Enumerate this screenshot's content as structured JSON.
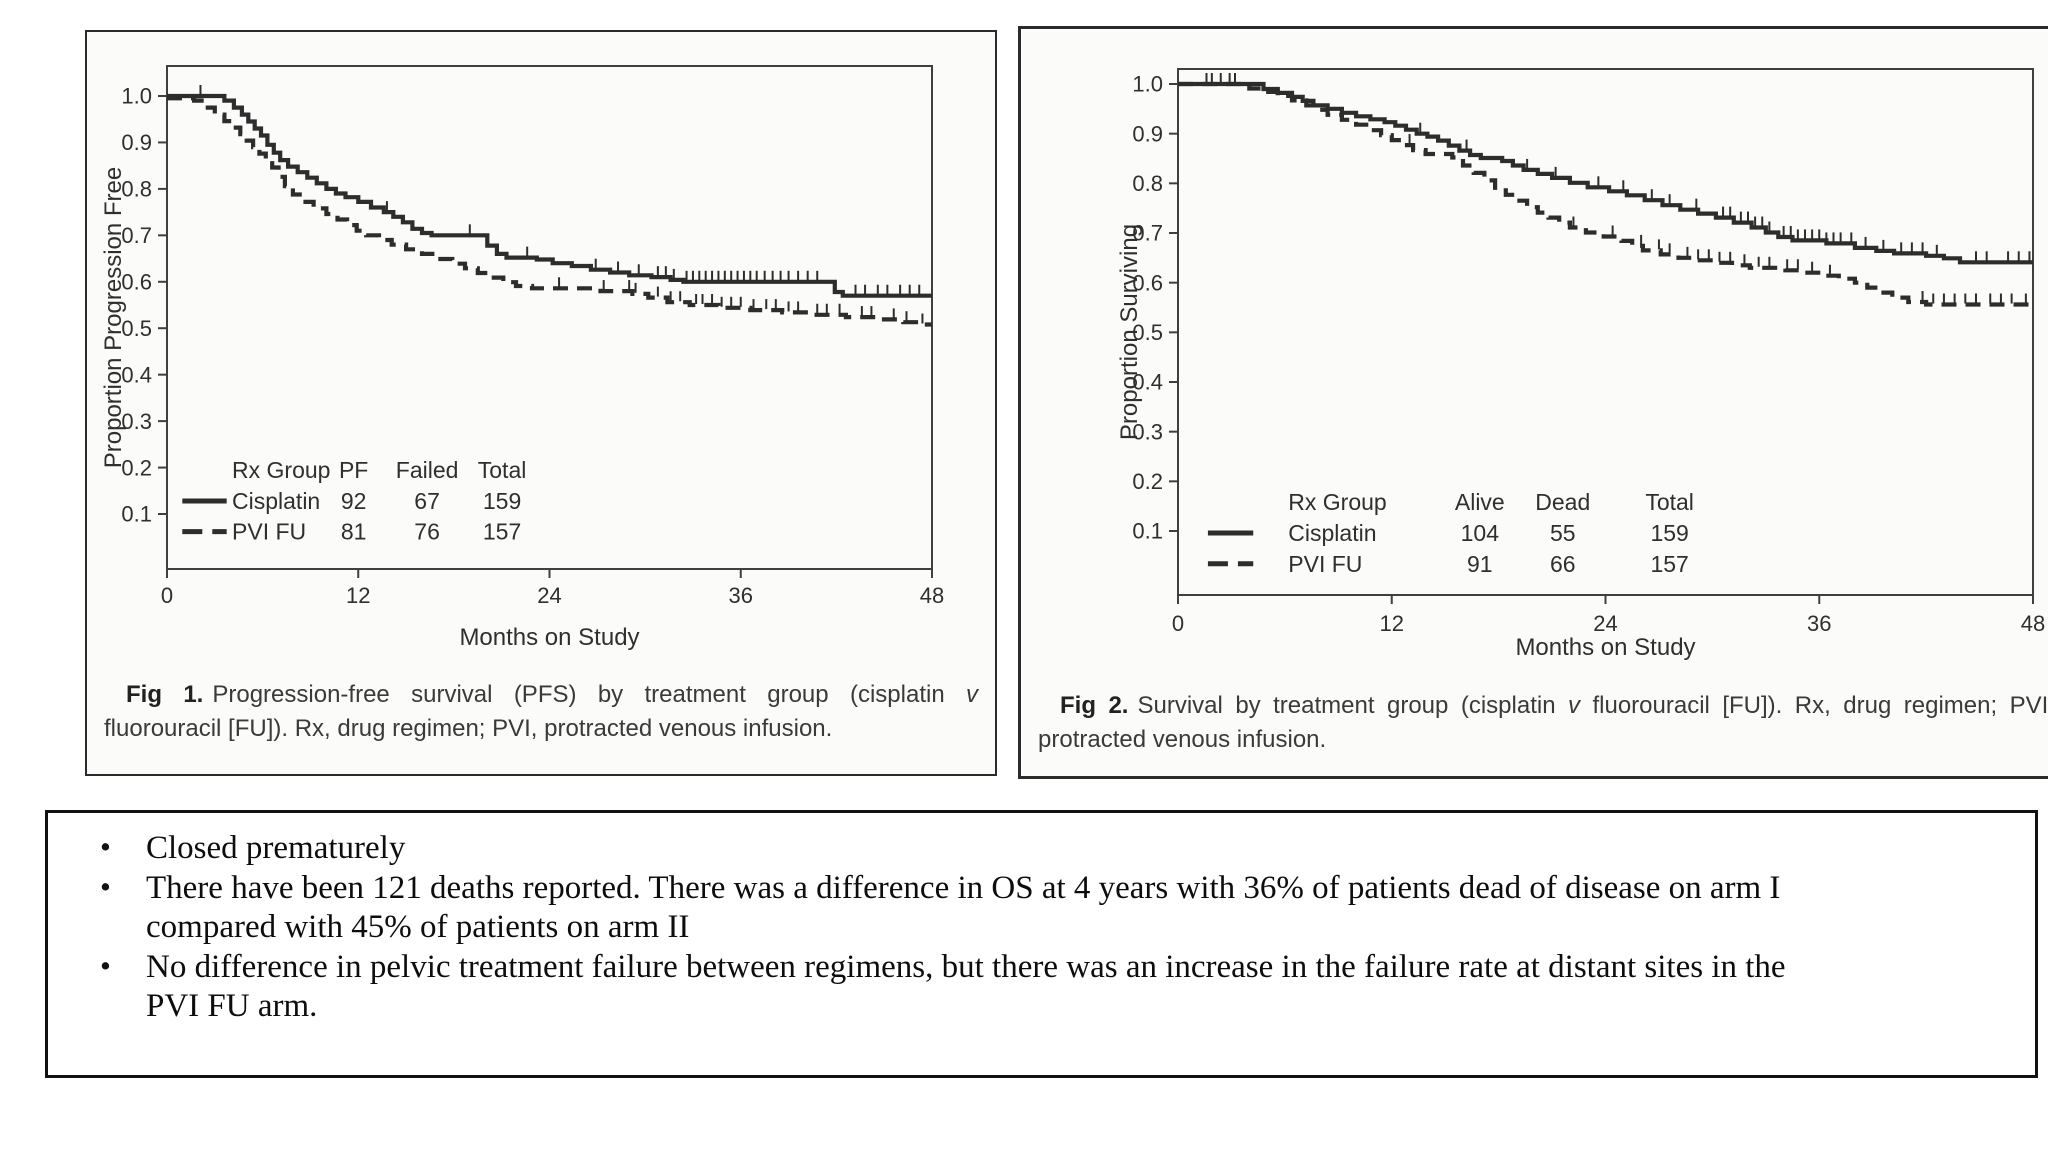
{
  "page": {
    "background": "#ffffff"
  },
  "colors": {
    "curve": "#2d2d2d",
    "axis": "#3f3f3f",
    "tick_text": "#2f2f2f",
    "caption_text": "#3a3a3a",
    "box_border": "#1c1c1c"
  },
  "figures": [
    {
      "caption": {
        "label": "Fig 1.",
        "segments": [
          [
            "Progression-free survival (PFS) by treatment group (cisplatin ",
            "n"
          ],
          [
            "v",
            "i"
          ],
          [
            " fluorouracil [FU]). Rx, drug regimen; PVI, protracted venous infusion.",
            "n"
          ]
        ]
      }
    },
    {
      "caption": {
        "label": "Fig 2.",
        "segments": [
          [
            "Survival by treatment group (cisplatin ",
            "n"
          ],
          [
            "v",
            "i"
          ],
          [
            " fluorouracil [FU]). Rx, drug regimen; PVI, protracted venous infusion.",
            "n"
          ]
        ]
      }
    }
  ],
  "chart_data": [
    {
      "type": "line",
      "subtype": "kaplan-meier-step",
      "title": "",
      "xlabel": "Months on Study",
      "ylabel": "Proportion Progression Free",
      "xlim": [
        0,
        48
      ],
      "xticks": [
        0,
        12,
        24,
        36,
        48
      ],
      "ylim": [
        0,
        1.0
      ],
      "yticks": [
        "1.0",
        "0.9",
        "0.8",
        "0.7",
        "0.6",
        "0.5",
        "0.4",
        "0.3",
        "0.2",
        "0.1"
      ],
      "grid": false,
      "legend_position": "inside-bottom-left",
      "legend_table": {
        "headers": [
          "Rx Group",
          "PF",
          "Failed",
          "Total"
        ],
        "rows": [
          [
            "Cisplatin",
            "92",
            "67",
            "159"
          ],
          [
            "PVI FU",
            "81",
            "76",
            "157"
          ]
        ]
      },
      "series": [
        {
          "name": "Cisplatin",
          "style": "solid",
          "points": [
            [
              0,
              1.0
            ],
            [
              3,
              1.0
            ],
            [
              3.6,
              0.99
            ],
            [
              4.2,
              0.975
            ],
            [
              4.7,
              0.96
            ],
            [
              5.1,
              0.945
            ],
            [
              5.5,
              0.93
            ],
            [
              5.9,
              0.915
            ],
            [
              6.3,
              0.895
            ],
            [
              6.7,
              0.878
            ],
            [
              7.1,
              0.862
            ],
            [
              7.6,
              0.848
            ],
            [
              8.2,
              0.836
            ],
            [
              8.8,
              0.824
            ],
            [
              9.4,
              0.812
            ],
            [
              10,
              0.8
            ],
            [
              10.6,
              0.79
            ],
            [
              11.2,
              0.782
            ],
            [
              12,
              0.772
            ],
            [
              12.8,
              0.76
            ],
            [
              13.6,
              0.75
            ],
            [
              14.2,
              0.74
            ],
            [
              14.8,
              0.728
            ],
            [
              15.4,
              0.714
            ],
            [
              16,
              0.705
            ],
            [
              16.6,
              0.7
            ],
            [
              19.6,
              0.7
            ],
            [
              20.1,
              0.678
            ],
            [
              20.7,
              0.66
            ],
            [
              21.3,
              0.652
            ],
            [
              23.2,
              0.648
            ],
            [
              24.2,
              0.64
            ],
            [
              25.4,
              0.634
            ],
            [
              26.6,
              0.626
            ],
            [
              27.8,
              0.62
            ],
            [
              29,
              0.614
            ],
            [
              30.4,
              0.61
            ],
            [
              31.6,
              0.604
            ],
            [
              32.4,
              0.6
            ],
            [
              41.2,
              0.6
            ],
            [
              41.9,
              0.578
            ],
            [
              42.4,
              0.57
            ],
            [
              48,
              0.57
            ]
          ],
          "censor_x": [
            2.1,
            13.8,
            19,
            22.6,
            26.9,
            28.3,
            29.6,
            30.8,
            31.3,
            31.8,
            32.6,
            33,
            33.4,
            33.8,
            34.2,
            34.6,
            35,
            35.4,
            35.8,
            36.2,
            36.6,
            37,
            37.5,
            38,
            38.5,
            39,
            39.6,
            40.2,
            40.8,
            43.2,
            43.8,
            44.6,
            45.2,
            46,
            46.6,
            47.2
          ]
        },
        {
          "name": "PVI FU",
          "style": "dashed",
          "points": [
            [
              0,
              0.995
            ],
            [
              1.7,
              0.99
            ],
            [
              2.3,
              0.975
            ],
            [
              3,
              0.96
            ],
            [
              3.6,
              0.946
            ],
            [
              4.1,
              0.932
            ],
            [
              4.6,
              0.918
            ],
            [
              5,
              0.904
            ],
            [
              5.4,
              0.89
            ],
            [
              5.8,
              0.876
            ],
            [
              6.2,
              0.862
            ],
            [
              6.6,
              0.846
            ],
            [
              7,
              0.826
            ],
            [
              7.4,
              0.806
            ],
            [
              7.9,
              0.788
            ],
            [
              8.5,
              0.772
            ],
            [
              9.2,
              0.758
            ],
            [
              10,
              0.746
            ],
            [
              10.7,
              0.734
            ],
            [
              11.3,
              0.722
            ],
            [
              11.9,
              0.71
            ],
            [
              12.5,
              0.7
            ],
            [
              13.3,
              0.69
            ],
            [
              14.1,
              0.68
            ],
            [
              15,
              0.67
            ],
            [
              16,
              0.66
            ],
            [
              17,
              0.649
            ],
            [
              17.9,
              0.639
            ],
            [
              18.7,
              0.629
            ],
            [
              19.5,
              0.619
            ],
            [
              20.3,
              0.609
            ],
            [
              21.1,
              0.599
            ],
            [
              21.9,
              0.591
            ],
            [
              22.9,
              0.586
            ],
            [
              27.2,
              0.58
            ],
            [
              29.2,
              0.574
            ],
            [
              30.2,
              0.566
            ],
            [
              31.4,
              0.556
            ],
            [
              32.8,
              0.55
            ],
            [
              34.6,
              0.544
            ],
            [
              36.6,
              0.539
            ],
            [
              38.6,
              0.534
            ],
            [
              40.6,
              0.529
            ],
            [
              42.6,
              0.524
            ],
            [
              44.6,
              0.519
            ],
            [
              46.2,
              0.513
            ],
            [
              47.2,
              0.508
            ],
            [
              48,
              0.508
            ]
          ],
          "censor_x": [
            24.6,
            27.4,
            29,
            29.4,
            30.8,
            31.6,
            32.2,
            33.2,
            33.6,
            34.2,
            34.8,
            35.4,
            36,
            36.8,
            37.6,
            38.2,
            39,
            39.6,
            40.8,
            41.4,
            42.2,
            43.6,
            44.2,
            45.6,
            46.4,
            47.4
          ]
        }
      ]
    },
    {
      "type": "line",
      "subtype": "kaplan-meier-step",
      "title": "",
      "xlabel": "Months on Study",
      "ylabel": "Proportion Surviving",
      "xlim": [
        0,
        48
      ],
      "xticks": [
        0,
        12,
        24,
        36,
        48
      ],
      "ylim": [
        0,
        1.0
      ],
      "yticks": [
        "1.0",
        "0.9",
        "0.8",
        "0.7",
        "0.6",
        "0.5",
        "0.4",
        "0.3",
        "0.2",
        "0.1"
      ],
      "grid": false,
      "legend_position": "inside-bottom-left",
      "legend_table": {
        "headers": [
          "Rx Group",
          "Alive",
          "Dead",
          "Total"
        ],
        "rows": [
          [
            "Cisplatin",
            "104",
            "55",
            "159"
          ],
          [
            "PVI FU",
            "91",
            "66",
            "157"
          ]
        ]
      },
      "series": [
        {
          "name": "Cisplatin",
          "style": "solid",
          "points": [
            [
              0,
              1.0
            ],
            [
              4,
              1.0
            ],
            [
              4.8,
              0.99
            ],
            [
              5.6,
              0.982
            ],
            [
              6.4,
              0.974
            ],
            [
              7,
              0.966
            ],
            [
              7.6,
              0.957
            ],
            [
              8.4,
              0.95
            ],
            [
              9.2,
              0.942
            ],
            [
              10,
              0.935
            ],
            [
              10.8,
              0.929
            ],
            [
              11.6,
              0.923
            ],
            [
              12.2,
              0.916
            ],
            [
              12.8,
              0.908
            ],
            [
              13.4,
              0.9
            ],
            [
              14,
              0.894
            ],
            [
              14.6,
              0.886
            ],
            [
              15.2,
              0.876
            ],
            [
              15.8,
              0.866
            ],
            [
              16.4,
              0.857
            ],
            [
              17,
              0.851
            ],
            [
              18.2,
              0.845
            ],
            [
              18.8,
              0.836
            ],
            [
              19.4,
              0.827
            ],
            [
              20.2,
              0.819
            ],
            [
              21,
              0.811
            ],
            [
              22,
              0.801
            ],
            [
              23,
              0.792
            ],
            [
              24.2,
              0.784
            ],
            [
              25.2,
              0.776
            ],
            [
              26.2,
              0.766
            ],
            [
              27.2,
              0.756
            ],
            [
              28.2,
              0.747
            ],
            [
              29.2,
              0.739
            ],
            [
              30.2,
              0.731
            ],
            [
              31.2,
              0.721
            ],
            [
              32.2,
              0.711
            ],
            [
              33,
              0.701
            ],
            [
              33.7,
              0.692
            ],
            [
              34.5,
              0.685
            ],
            [
              36.4,
              0.679
            ],
            [
              38,
              0.67
            ],
            [
              39.2,
              0.664
            ],
            [
              40.2,
              0.659
            ],
            [
              42,
              0.654
            ],
            [
              43,
              0.649
            ],
            [
              43.9,
              0.641
            ],
            [
              48,
              0.641
            ]
          ],
          "censor_x": [
            1.6,
            2.4,
            3.2,
            13.6,
            16.2,
            19.6,
            21.2,
            23.6,
            25,
            26.6,
            27.6,
            29.1,
            30.6,
            31,
            31.6,
            32,
            32.4,
            32.8,
            33.2,
            34,
            34.4,
            34.8,
            35.2,
            35.6,
            36,
            36.4,
            36.8,
            37.2,
            37.8,
            38.6,
            39.6,
            40.6,
            41.2,
            41.8,
            42.6,
            44.8,
            45.4,
            46.6,
            47.2,
            47.8
          ]
        },
        {
          "name": "PVI FU",
          "style": "dashed",
          "points": [
            [
              0,
              1.0
            ],
            [
              3.4,
              1.0
            ],
            [
              4,
              0.991
            ],
            [
              4.8,
              0.984
            ],
            [
              5.6,
              0.976
            ],
            [
              6.4,
              0.967
            ],
            [
              7.2,
              0.957
            ],
            [
              7.8,
              0.948
            ],
            [
              8.4,
              0.938
            ],
            [
              9.2,
              0.928
            ],
            [
              10,
              0.918
            ],
            [
              10.8,
              0.907
            ],
            [
              11.4,
              0.897
            ],
            [
              12,
              0.887
            ],
            [
              12.6,
              0.877
            ],
            [
              13.2,
              0.867
            ],
            [
              13.9,
              0.859
            ],
            [
              15.4,
              0.852
            ],
            [
              16,
              0.836
            ],
            [
              16.6,
              0.821
            ],
            [
              17.2,
              0.806
            ],
            [
              17.8,
              0.791
            ],
            [
              18.4,
              0.777
            ],
            [
              19,
              0.765
            ],
            [
              19.6,
              0.752
            ],
            [
              20.2,
              0.741
            ],
            [
              20.8,
              0.731
            ],
            [
              21.4,
              0.721
            ],
            [
              22,
              0.711
            ],
            [
              22.9,
              0.701
            ],
            [
              23.9,
              0.693
            ],
            [
              24.9,
              0.684
            ],
            [
              25.5,
              0.674
            ],
            [
              26.1,
              0.665
            ],
            [
              27.1,
              0.657
            ],
            [
              28.1,
              0.65
            ],
            [
              29.1,
              0.645
            ],
            [
              30.1,
              0.64
            ],
            [
              31.1,
              0.635
            ],
            [
              32.1,
              0.63
            ],
            [
              34.1,
              0.625
            ],
            [
              35.1,
              0.62
            ],
            [
              36.1,
              0.614
            ],
            [
              37.1,
              0.608
            ],
            [
              38,
              0.6
            ],
            [
              38.7,
              0.59
            ],
            [
              39.3,
              0.58
            ],
            [
              40.1,
              0.57
            ],
            [
              41,
              0.561
            ],
            [
              42,
              0.556
            ],
            [
              48,
              0.556
            ]
          ],
          "censor_x": [
            1.9,
            2.9,
            13,
            22.2,
            24.4,
            26,
            27,
            27.6,
            28.6,
            29.2,
            29.8,
            30.4,
            31,
            31.8,
            32.6,
            33.2,
            34.2,
            34.8,
            35.6,
            36.6,
            41.8,
            42.4,
            43,
            43.6,
            44.2,
            44.8,
            45.6,
            46.2,
            46.8,
            47.6
          ]
        }
      ]
    }
  ],
  "notes": {
    "bullets": [
      "Closed prematurely",
      "There have been 121 deaths reported. There was a difference in OS at 4 years with 36% of patients dead of disease on arm I compared with 45% of patients on arm II",
      "No difference in pelvic treatment failure between regimens, but there was an increase in the failure rate at distant sites in the PVI FU arm."
    ]
  }
}
